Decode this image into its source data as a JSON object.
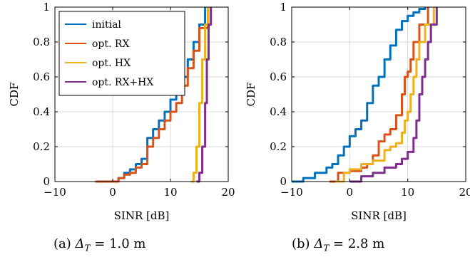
{
  "chart_data": [
    {
      "type": "line",
      "title": "",
      "xlabel": "SINR [dB]",
      "ylabel": "CDF",
      "xlim": [
        -10,
        20
      ],
      "ylim": [
        0,
        1
      ],
      "xticks": [
        "−10",
        "0",
        "10",
        "20"
      ],
      "yticks": [
        "0",
        "0.2",
        "0.4",
        "0.6",
        "0.8",
        "1"
      ],
      "grid": true,
      "legend": "top-left",
      "caption_prefix": "(a)",
      "caption_value": "1.0 m",
      "series": [
        {
          "name": "initial",
          "color": "#0072BD",
          "x": [
            -3,
            1,
            2,
            3,
            4,
            5,
            6,
            7,
            8,
            9,
            10,
            11,
            12,
            13,
            14,
            15,
            16
          ],
          "y": [
            0,
            0.02,
            0.05,
            0.07,
            0.1,
            0.13,
            0.25,
            0.3,
            0.35,
            0.4,
            0.47,
            0.52,
            0.6,
            0.7,
            0.8,
            0.9,
            1.0
          ]
        },
        {
          "name": "opt. RX",
          "color": "#D95319",
          "x": [
            -3,
            1,
            2,
            3,
            4,
            5,
            6,
            7,
            8,
            9,
            10,
            11,
            12,
            13,
            14,
            15,
            16.5
          ],
          "y": [
            0,
            0.02,
            0.04,
            0.05,
            0.08,
            0.1,
            0.2,
            0.25,
            0.3,
            0.35,
            0.4,
            0.45,
            0.55,
            0.65,
            0.75,
            0.88,
            1.0
          ]
        },
        {
          "name": "opt. HX",
          "color": "#EDB120",
          "x": [
            13.5,
            14,
            14.5,
            15,
            15.5,
            16,
            16.5
          ],
          "y": [
            0,
            0.05,
            0.2,
            0.45,
            0.7,
            0.9,
            1.0
          ]
        },
        {
          "name": "opt. RX+HX",
          "color": "#7E2F8E",
          "x": [
            14.5,
            15,
            15.5,
            16,
            16.3,
            16.6,
            17
          ],
          "y": [
            0,
            0.05,
            0.2,
            0.45,
            0.7,
            0.9,
            1.0
          ]
        }
      ]
    },
    {
      "type": "line",
      "title": "",
      "xlabel": "SINR [dB]",
      "ylabel": "CDF",
      "xlim": [
        -10,
        20
      ],
      "ylim": [
        0,
        1
      ],
      "xticks": [
        "−10",
        "0",
        "10",
        "20"
      ],
      "yticks": [
        "0",
        "0.2",
        "0.4",
        "0.6",
        "0.8",
        "1"
      ],
      "grid": true,
      "caption_prefix": "(b)",
      "caption_value": "2.8 m",
      "series": [
        {
          "name": "initial",
          "color": "#0072BD",
          "x": [
            -10,
            -8,
            -6,
            -4,
            -3,
            -2,
            -1,
            0,
            1,
            2,
            3,
            4,
            5,
            6,
            7,
            8,
            9,
            10,
            11,
            12,
            13
          ],
          "y": [
            0,
            0.02,
            0.05,
            0.08,
            0.1,
            0.15,
            0.2,
            0.26,
            0.3,
            0.35,
            0.45,
            0.55,
            0.6,
            0.7,
            0.78,
            0.87,
            0.92,
            0.95,
            0.97,
            0.99,
            1.0
          ]
        },
        {
          "name": "opt. RX",
          "color": "#D95319",
          "x": [
            -3.5,
            -2,
            0,
            2,
            3,
            4,
            5,
            6,
            7,
            8,
            9,
            9.5,
            10,
            10.5,
            11,
            12,
            13.5
          ],
          "y": [
            0,
            0.05,
            0.06,
            0.08,
            0.1,
            0.15,
            0.23,
            0.27,
            0.3,
            0.38,
            0.5,
            0.6,
            0.63,
            0.7,
            0.8,
            0.9,
            1.0
          ]
        },
        {
          "name": "opt. HX",
          "color": "#EDB120",
          "x": [
            -2.5,
            -1,
            0,
            2,
            4,
            6,
            7,
            8,
            9,
            9.5,
            10,
            10.5,
            11,
            11.5,
            12,
            13,
            14.5
          ],
          "y": [
            0,
            0.05,
            0.07,
            0.1,
            0.12,
            0.18,
            0.2,
            0.22,
            0.28,
            0.35,
            0.4,
            0.5,
            0.6,
            0.7,
            0.8,
            0.9,
            1.0
          ]
        },
        {
          "name": "opt. RX+HX",
          "color": "#7E2F8E",
          "x": [
            0,
            2,
            4,
            6,
            8,
            9,
            10,
            11,
            11.5,
            12,
            12.5,
            13,
            13.5,
            14,
            15
          ],
          "y": [
            0,
            0.03,
            0.05,
            0.08,
            0.1,
            0.13,
            0.17,
            0.25,
            0.35,
            0.5,
            0.6,
            0.7,
            0.8,
            0.9,
            1.0
          ]
        }
      ]
    }
  ]
}
